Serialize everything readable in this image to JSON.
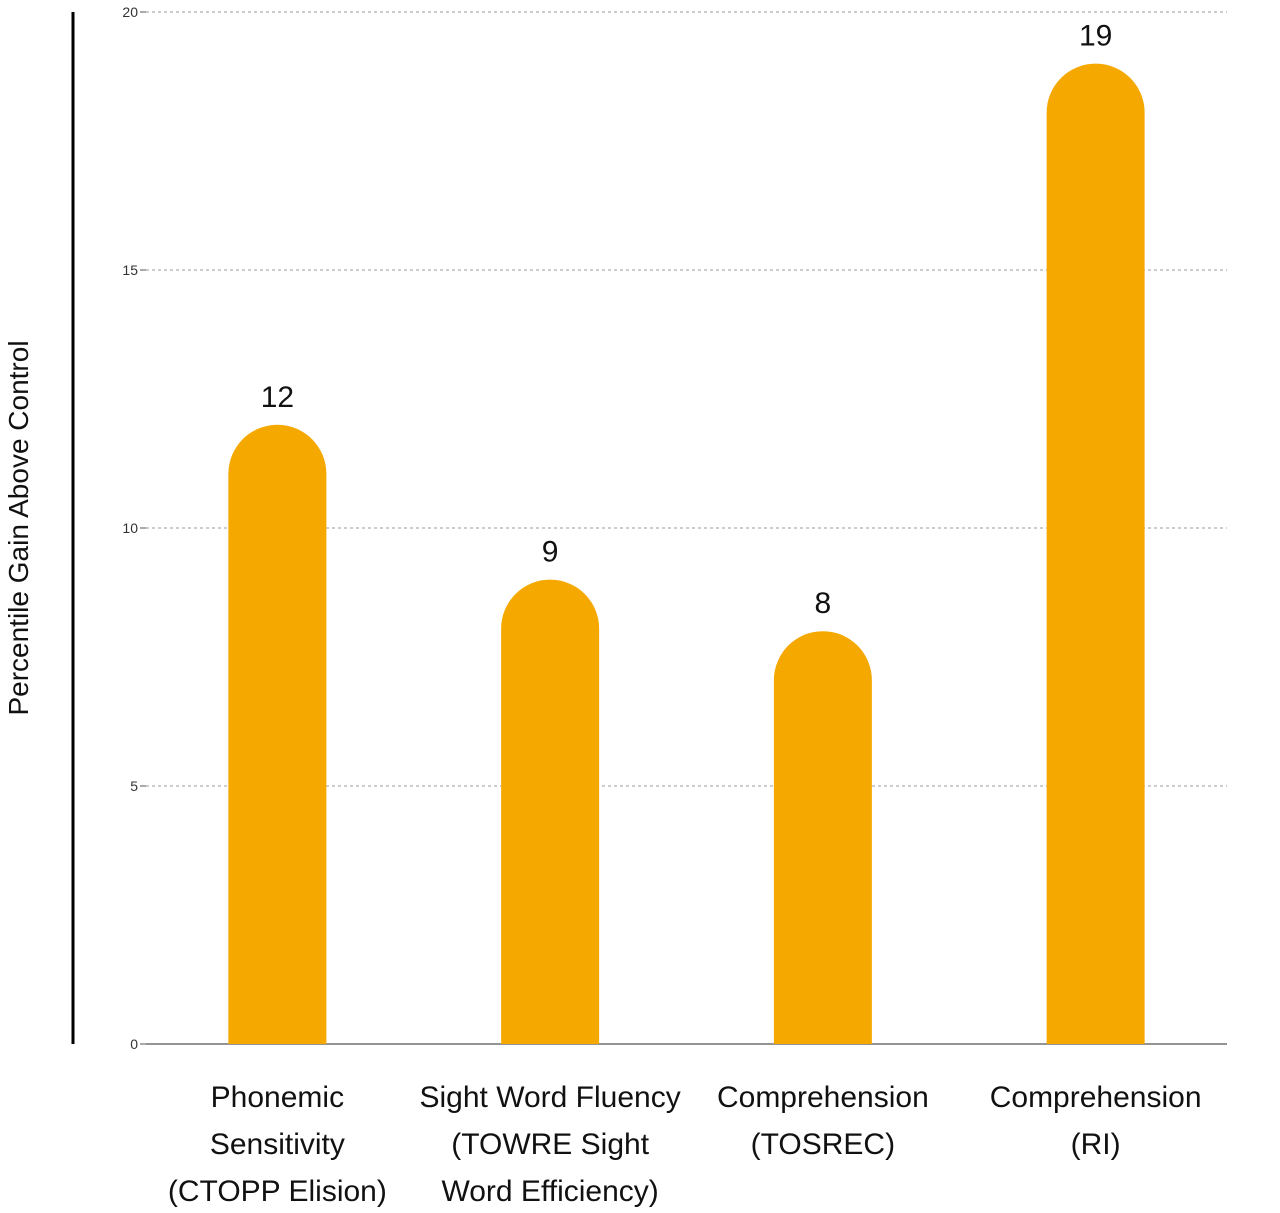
{
  "chart_data": {
    "type": "bar",
    "title": "",
    "xlabel": "",
    "ylabel": "Percentile Gain Above Control",
    "ylim": [
      0,
      20
    ],
    "yticks": [
      0,
      5,
      10,
      15,
      20
    ],
    "grid": true,
    "bar_color": "#F5A800",
    "categories": [
      [
        "Phonemic",
        "Sensitivity",
        "(CTOPP Elision)"
      ],
      [
        "Sight Word Fluency",
        "(TOWRE Sight",
        "Word Efficiency)"
      ],
      [
        "Comprehension",
        "(TOSREC)"
      ],
      [
        "Comprehension",
        "(RI)"
      ]
    ],
    "values": [
      12,
      9,
      8,
      19
    ],
    "data_labels": [
      "12",
      "9",
      "8",
      "19"
    ]
  }
}
